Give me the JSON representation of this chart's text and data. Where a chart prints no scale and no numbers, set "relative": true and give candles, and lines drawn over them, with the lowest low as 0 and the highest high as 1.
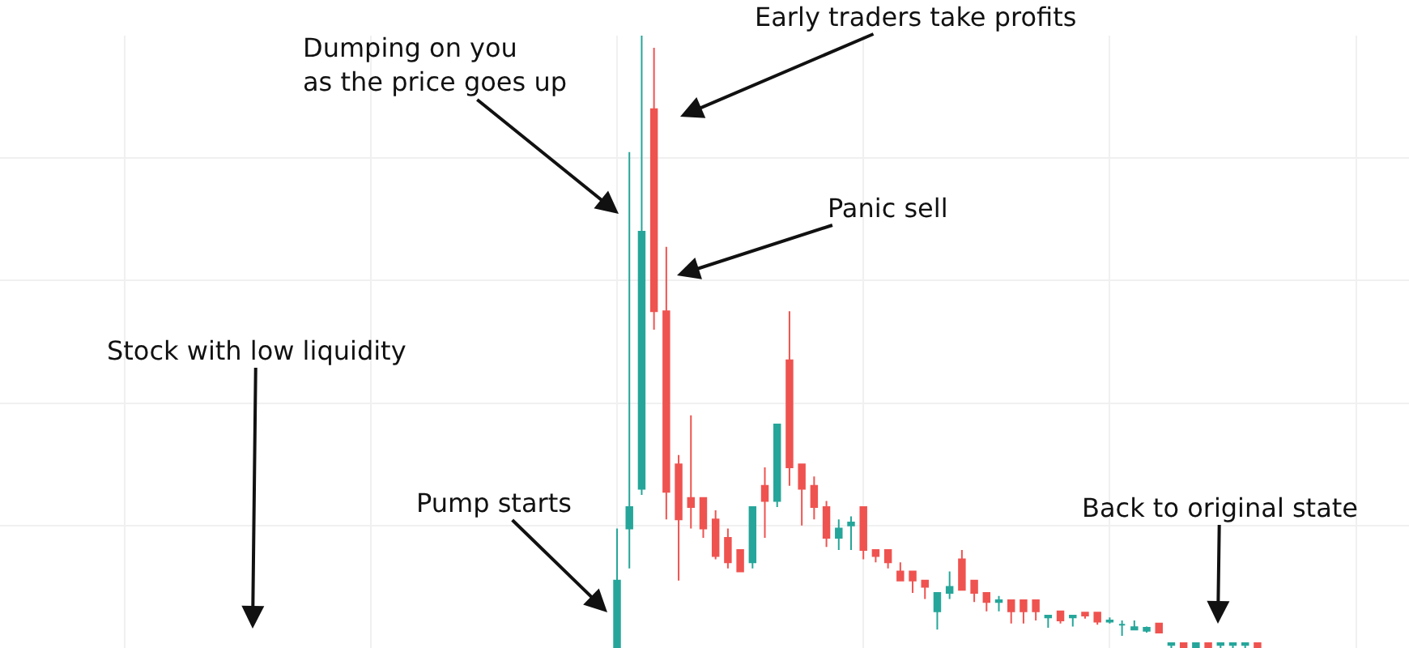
{
  "chart_data": {
    "type": "candlestick",
    "relative": true,
    "grid": true,
    "categories": [
      null,
      null,
      null,
      null,
      null,
      null,
      null,
      null,
      null,
      null,
      null,
      null,
      null,
      null,
      null,
      null,
      null,
      null,
      null,
      null,
      null,
      null,
      null,
      null,
      null,
      null,
      null,
      null,
      null,
      null,
      null,
      null,
      null,
      null,
      null,
      null,
      null,
      null,
      null,
      null,
      null,
      null,
      null,
      null,
      null,
      null,
      null,
      null,
      null,
      null,
      null,
      null,
      null
    ],
    "ohlc": [
      [
        0,
        0.195,
        0,
        0.11
      ],
      [
        0.195,
        0.81,
        0.13,
        0.23
      ],
      [
        0.26,
        1,
        0.25,
        0.68
      ],
      [
        0.88,
        0.98,
        0.52,
        0.55
      ],
      [
        0.55,
        0.655,
        0.21,
        0.255
      ],
      [
        0.3,
        0.315,
        0.11,
        0.21
      ],
      [
        0.245,
        0.38,
        0.195,
        0.23
      ],
      [
        0.245,
        0.245,
        0.18,
        0.195
      ],
      [
        0.21,
        0.225,
        0.145,
        0.15
      ],
      [
        0.18,
        0.195,
        0.13,
        0.14
      ],
      [
        0.16,
        0.16,
        0.125,
        0.125
      ],
      [
        0.14,
        0.23,
        0.13,
        0.23
      ],
      [
        0.265,
        0.295,
        0.18,
        0.24
      ],
      [
        0.24,
        0.365,
        0.23,
        0.365
      ],
      [
        0.47,
        0.55,
        0.265,
        0.295
      ],
      [
        0.3,
        0.3,
        0.2,
        0.26
      ],
      [
        0.265,
        0.28,
        0.21,
        0.23
      ],
      [
        0.23,
        0.24,
        0.165,
        0.18
      ],
      [
        0.18,
        0.21,
        0.16,
        0.195
      ],
      [
        0.2,
        0.215,
        0.16,
        0.205
      ],
      [
        0.23,
        0.23,
        0.145,
        0.16
      ],
      [
        0.16,
        0.16,
        0.14,
        0.15
      ],
      [
        0.16,
        0.16,
        0.13,
        0.14
      ],
      [
        0.125,
        0.14,
        0.11,
        0.11
      ],
      [
        0.125,
        0.125,
        0.09,
        0.11
      ],
      [
        0.11,
        0.11,
        0.08,
        0.1
      ],
      [
        0.06,
        0.09,
        0.03,
        0.09
      ],
      [
        0.09,
        0.125,
        0.08,
        0.1
      ],
      [
        0.145,
        0.16,
        0.095,
        0.095
      ],
      [
        0.11,
        0.11,
        0.075,
        0.09
      ],
      [
        0.09,
        0.09,
        0.06,
        0.075
      ],
      [
        0.075,
        0.085,
        0.06,
        0.078
      ],
      [
        0.078,
        0.078,
        0.04,
        0.06
      ],
      [
        0.078,
        0.078,
        0.04,
        0.06
      ],
      [
        0.078,
        0.078,
        0.045,
        0.06
      ],
      [
        0.05,
        0.053,
        0.033,
        0.053
      ],
      [
        0.06,
        0.06,
        0.04,
        0.045
      ],
      [
        0.05,
        0.053,
        0.035,
        0.053
      ],
      [
        0.058,
        0.058,
        0.048,
        0.053
      ],
      [
        0.058,
        0.058,
        0.038,
        0.043
      ],
      [
        0.043,
        0.05,
        0.04,
        0.045
      ],
      [
        0.038,
        0.045,
        0.02,
        0.038
      ],
      [
        0.03,
        0.045,
        0.03,
        0.034
      ],
      [
        0.028,
        0.035,
        0.025,
        0.033
      ],
      [
        0.04,
        0.04,
        0.025,
        0.025
      ],
      [
        0.005,
        0.008,
        0,
        0.008
      ],
      [
        0.008,
        0.008,
        0,
        0
      ],
      [
        0,
        0.008,
        0,
        0.008
      ],
      [
        0.008,
        0.008,
        0,
        0
      ],
      [
        0.005,
        0.008,
        0,
        0.008
      ],
      [
        0.005,
        0.008,
        0,
        0.008
      ],
      [
        0.005,
        0.008,
        0,
        0.008
      ],
      [
        0.008,
        0.008,
        0,
        0
      ]
    ],
    "colors": [
      "#26a69a",
      "#26a69a",
      "#26a69a",
      "#ef5350",
      "#ef5350",
      "#ef5350",
      "#ef5350",
      "#ef5350",
      "#ef5350",
      "#ef5350",
      "#ef5350",
      "#26a69a",
      "#ef5350",
      "#26a69a",
      "#ef5350",
      "#ef5350",
      "#ef5350",
      "#ef5350",
      "#26a69a",
      "#26a69a",
      "#ef5350",
      "#ef5350",
      "#ef5350",
      "#ef5350",
      "#ef5350",
      "#ef5350",
      "#26a69a",
      "#26a69a",
      "#ef5350",
      "#ef5350",
      "#ef5350",
      "#26a69a",
      "#ef5350",
      "#ef5350",
      "#ef5350",
      "#26a69a",
      "#ef5350",
      "#26a69a",
      "#ef5350",
      "#ef5350",
      "#26a69a",
      "#26a69a",
      "#26a69a",
      "#26a69a",
      "#ef5350",
      "#26a69a",
      "#ef5350",
      "#26a69a",
      "#ef5350",
      "#26a69a",
      "#26a69a",
      "#26a69a",
      "#ef5350"
    ],
    "annotations": [
      "Dumping on you\nas the price goes up",
      "Early traders take profits",
      "Panic sell",
      "Stock with low liquidity",
      "Pump starts",
      "Back to original state"
    ]
  }
}
